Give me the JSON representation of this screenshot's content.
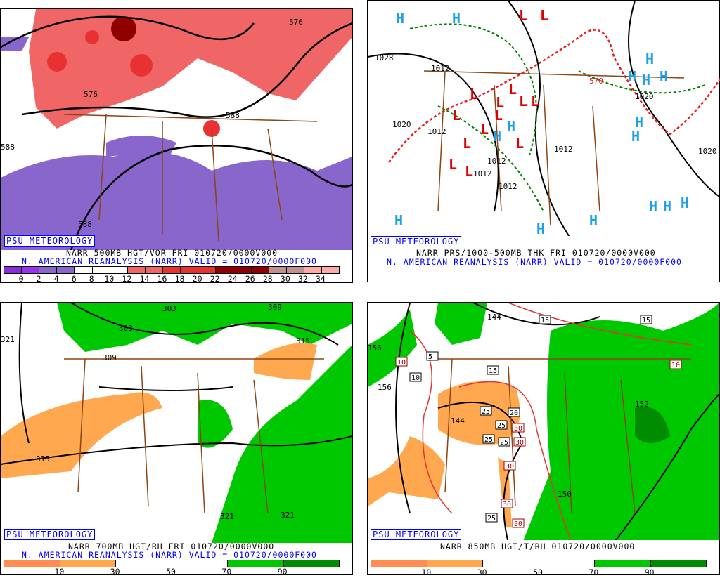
{
  "panels": [
    {
      "badge": "PSU METEOROLOGY",
      "title": "NARR 500MB HGT/VOR FRI 010720/0000V000",
      "subtitle": "N. AMERICAN REANALYSIS (NARR) VALID = 010720/0000F000",
      "colorbar": [
        "#8a2be2",
        "#9b30f0",
        "#8866cc",
        "#8866cc",
        "#ffffff",
        "#ffffff",
        "#ffffff",
        "#f06666",
        "#f06666",
        "#e83232",
        "#e83232",
        "#e83232",
        "#900000",
        "#900000",
        "#900000",
        "#c09090",
        "#c09090",
        "#ffaaaa",
        "#ffaaaa"
      ],
      "ticks": [
        "0",
        "2",
        "4",
        "6",
        "8",
        "10",
        "12",
        "14",
        "16",
        "18",
        "20",
        "22",
        "24",
        "26",
        "28",
        "30",
        "32",
        "34"
      ],
      "labels": [
        "576",
        "576",
        "588",
        "588",
        "588"
      ]
    },
    {
      "badge": "PSU METEOROLOGY",
      "title": "NARR PRS/1000-500MB THK FRI 010720/0000V000",
      "subtitle": "N. AMERICAN REANALYSIS (NARR) VALID = 010720/0000F000",
      "labels": [
        "1028",
        "1020",
        "1012",
        "1012",
        "1012",
        "1012",
        "1020",
        "1012",
        "1020",
        "570",
        "1012"
      ],
      "highs": 16,
      "lows": 14
    },
    {
      "badge": "PSU METEOROLOGY",
      "title": "NARR 700MB HGT/RH FRI 010720/0000V000",
      "subtitle": "N. AMERICAN REANALYSIS (NARR) VALID = 010720/0000F000",
      "colorbar": [
        "#ff8c50",
        "#ffa850",
        "#ffffff",
        "#ffffff",
        "#00c800",
        "#008c00"
      ],
      "ticks": [
        "10",
        "30",
        "50",
        "70",
        "90"
      ],
      "labels": [
        "303",
        "303",
        "309",
        "315",
        "315",
        "321",
        "321",
        "321",
        "309"
      ]
    },
    {
      "badge": "PSU METEOROLOGY",
      "title": "NARR 850MB HGT/T/RH 010720/0000V000",
      "colorbar": [
        "#ff8c50",
        "#ffa850",
        "#ffffff",
        "#ffffff",
        "#00c800",
        "#008c00"
      ],
      "ticks": [
        "10",
        "30",
        "50",
        "70",
        "90"
      ],
      "labels": [
        "144",
        "156",
        "144",
        "150",
        "156",
        "152"
      ],
      "temp_boxes": [
        "5",
        "10",
        "15",
        "20",
        "25",
        "25",
        "25",
        "25",
        "30",
        "30",
        "30",
        "30",
        "30",
        "25",
        "15",
        "15",
        "10",
        "10"
      ]
    }
  ]
}
